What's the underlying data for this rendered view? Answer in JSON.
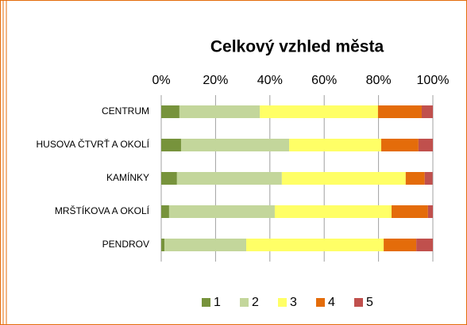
{
  "chart_data": {
    "type": "stacked_barh",
    "title": "Celkový vzhled města",
    "categories": [
      "CENTRUM",
      "HUSOVA ČTVRŤ A OKOLÍ",
      "KAMÍNKY",
      "MRŠTÍKOVA A OKOLÍ",
      "PENDROV"
    ],
    "series": [
      {
        "name": "1",
        "color": "#77933c",
        "values": [
          6.7,
          7.3,
          5.8,
          2.9,
          1.2
        ]
      },
      {
        "name": "2",
        "color": "#c3d69b",
        "values": [
          29.6,
          39.8,
          38.6,
          38.9,
          30.1
        ]
      },
      {
        "name": "3",
        "color": "#ffff66",
        "values": [
          43.5,
          33.9,
          45.6,
          43.0,
          50.6
        ]
      },
      {
        "name": "4",
        "color": "#e46c0a",
        "values": [
          16.1,
          13.7,
          7.0,
          13.4,
          12.0
        ]
      },
      {
        "name": "5",
        "color": "#c0504d",
        "values": [
          4.1,
          5.3,
          2.9,
          1.8,
          6.1
        ]
      }
    ],
    "xlim": [
      0,
      100
    ],
    "xticks": [
      {
        "value": 0,
        "label": "0%"
      },
      {
        "value": 20,
        "label": "20%"
      },
      {
        "value": 40,
        "label": "40%"
      },
      {
        "value": 60,
        "label": "60%"
      },
      {
        "value": 80,
        "label": "80%"
      },
      {
        "value": 100,
        "label": "100%"
      }
    ],
    "grid": true,
    "legend": "bottom"
  }
}
